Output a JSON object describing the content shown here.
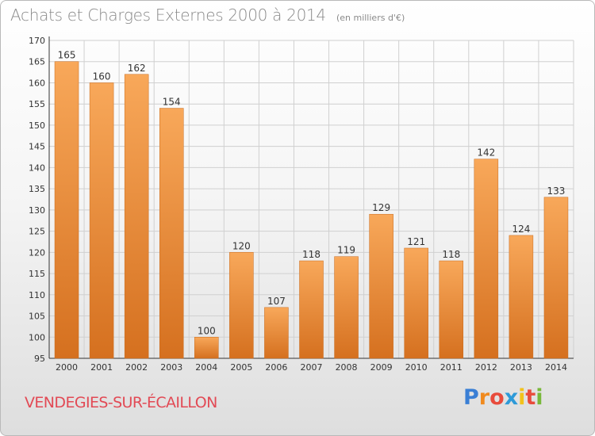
{
  "title": "Achats et Charges Externes 2000 à 2014",
  "subtitle": "(en milliers d'€)",
  "commune": "VENDEGIES-SUR-ÉCAILLON",
  "logo": {
    "letters": [
      "P",
      "r",
      "o",
      "x",
      "i",
      "t",
      "i"
    ],
    "colors": [
      "#3a7fd5",
      "#f08a1e",
      "#e84b3c",
      "#2e9ad8",
      "#f2c21b",
      "#e84b3c",
      "#78b83a"
    ]
  },
  "colors": {
    "bar_top": "#f8a85a",
    "bar_bottom": "#d5701f",
    "grid": "#d0d0d0",
    "axis_text": "#333333",
    "commune": "#e24a55"
  },
  "chart_data": {
    "type": "bar",
    "categories": [
      "2000",
      "2001",
      "2002",
      "2003",
      "2004",
      "2005",
      "2006",
      "2007",
      "2008",
      "2009",
      "2010",
      "2011",
      "2012",
      "2013",
      "2014"
    ],
    "values": [
      165,
      160,
      162,
      154,
      100,
      120,
      107,
      118,
      119,
      129,
      121,
      118,
      142,
      124,
      133
    ],
    "ylim": [
      95,
      170
    ],
    "yticks": [
      95,
      100,
      105,
      110,
      115,
      120,
      125,
      130,
      135,
      140,
      145,
      150,
      155,
      160,
      165,
      170
    ],
    "grid": true,
    "data_labels": true
  }
}
